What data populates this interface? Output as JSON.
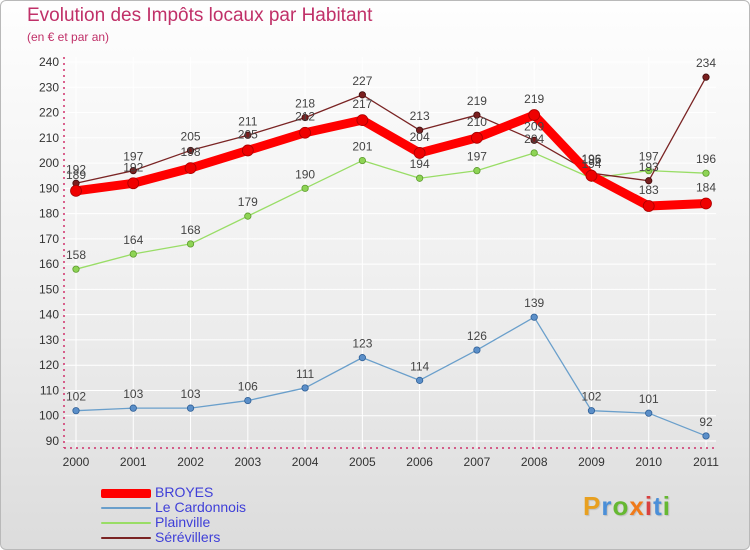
{
  "title": "Evolution des Impôts locaux par Habitant",
  "subtitle": "(en € et par an)",
  "logo_text": "Proxiti",
  "chart_data": {
    "type": "line",
    "title": "Evolution des Impôts locaux par Habitant",
    "subtitle": "(en € et par an)",
    "xlabel": "",
    "ylabel": "",
    "x": [
      "2000",
      "2001",
      "2002",
      "2003",
      "2004",
      "2005",
      "2006",
      "2007",
      "2008",
      "2009",
      "2010",
      "2011"
    ],
    "ylim": [
      90,
      240
    ],
    "yticks": [
      90,
      100,
      110,
      120,
      130,
      140,
      150,
      160,
      170,
      180,
      190,
      200,
      210,
      220,
      230,
      240
    ],
    "legend_position": "bottom-left",
    "series": [
      {
        "name": "BROYES",
        "color": "#ff0000",
        "values": [
          189,
          192,
          198,
          205,
          212,
          217,
          204,
          210,
          219,
          195,
          183,
          184
        ]
      },
      {
        "name": "Le Cardonnois",
        "color": "#6a9fcb",
        "values": [
          102,
          103,
          103,
          106,
          111,
          123,
          114,
          126,
          139,
          102,
          101,
          92
        ]
      },
      {
        "name": "Plainville",
        "color": "#99dd66",
        "values": [
          158,
          164,
          168,
          179,
          190,
          201,
          194,
          197,
          204,
          194,
          197,
          196
        ]
      },
      {
        "name": "Sérévillers",
        "color": "#7a2424",
        "values": [
          192,
          197,
          205,
          211,
          218,
          227,
          213,
          219,
          209,
          196,
          193,
          234
        ]
      }
    ]
  }
}
